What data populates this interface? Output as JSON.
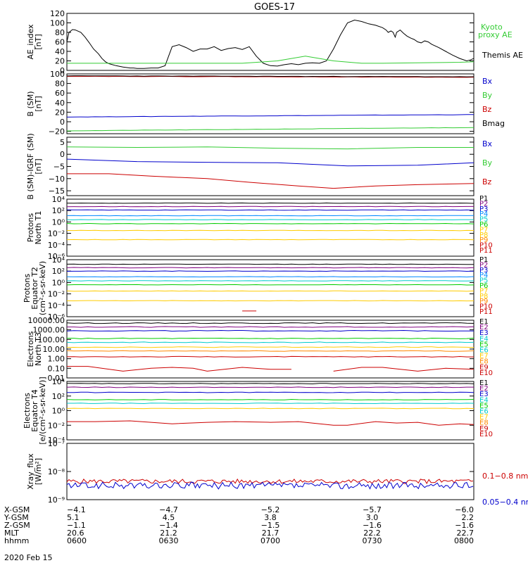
{
  "title": "GOES-17",
  "date": "2020 Feb 15",
  "chart_data": [
    {
      "type": "line",
      "ylabel": [
        "AE_index",
        "[nT]"
      ],
      "ylim": [
        0,
        120
      ],
      "yscale": "linear",
      "ticks": [
        0,
        20,
        40,
        60,
        80,
        100,
        120
      ],
      "tick_labels": [
        "0",
        "20",
        "40",
        "60",
        "80",
        "100",
        "120"
      ],
      "series": [
        {
          "name": "Themis AE",
          "color": "#000000",
          "x": [
            0,
            3,
            8,
            12,
            20,
            26,
            32,
            38,
            45,
            50,
            55,
            60,
            70,
            80,
            90,
            95,
            100,
            110,
            120,
            130,
            140,
            150,
            160,
            170,
            180,
            190,
            200,
            210,
            220,
            230,
            240,
            250,
            260,
            270,
            280,
            290,
            300,
            310,
            320,
            330,
            340,
            350,
            360,
            370,
            380,
            390,
            400,
            410,
            420,
            430,
            440,
            450,
            455,
            458,
            462,
            465,
            468,
            470,
            475,
            480,
            485,
            490,
            495,
            500,
            505,
            510,
            515,
            520,
            530,
            540,
            550,
            560,
            570,
            575,
            580
          ],
          "y": [
            60,
            80,
            86,
            85,
            80,
            70,
            58,
            45,
            35,
            25,
            18,
            14,
            10,
            7,
            5,
            5,
            4,
            4,
            5,
            5,
            10,
            50,
            54,
            48,
            40,
            45,
            45,
            50,
            42,
            46,
            48,
            44,
            50,
            30,
            15,
            10,
            9,
            12,
            14,
            12,
            15,
            16,
            15,
            20,
            45,
            75,
            100,
            106,
            103,
            98,
            95,
            90,
            85,
            80,
            83,
            80,
            70,
            80,
            85,
            78,
            72,
            68,
            65,
            60,
            58,
            62,
            60,
            55,
            48,
            40,
            32,
            25,
            20,
            22,
            25
          ]
        },
        {
          "name": "Kyoto proxy AE",
          "color": "#33cc33",
          "x": [
            0,
            100,
            200,
            250,
            300,
            340,
            360,
            380,
            420,
            450,
            500,
            560,
            580
          ],
          "y": [
            15,
            15,
            15,
            15,
            20,
            30,
            25,
            20,
            15,
            15,
            16,
            17,
            18
          ],
          "note": "approximate"
        }
      ],
      "legend": [
        "Kyoto proxy AE",
        "Themis AE"
      ]
    },
    {
      "type": "line",
      "ylabel": [
        "B (SM)",
        "[nT]"
      ],
      "ylim": [
        -25,
        100
      ],
      "yscale": "linear",
      "ticks": [
        -20,
        0,
        20,
        40,
        60,
        80,
        100
      ],
      "tick_labels": [
        "−20",
        "0",
        "20",
        "40",
        "60",
        "80",
        "100"
      ],
      "series": [
        {
          "name": "Bx",
          "color": "#0000cc",
          "y_start": 10,
          "y_end": 15
        },
        {
          "name": "By",
          "color": "#33cc33",
          "y_start": -19,
          "y_end": -12
        },
        {
          "name": "Bz",
          "color": "#cc0000",
          "y_start": 95,
          "y_end": 93
        },
        {
          "name": "Bmag",
          "color": "#000000",
          "y_start": 96,
          "y_end": 94
        }
      ],
      "legend": [
        "Bx",
        "By",
        "Bz",
        "Bmag"
      ]
    },
    {
      "type": "line",
      "ylabel": [
        "B (SM)-IGRF (SM)",
        "[nT]"
      ],
      "ylim": [
        -17,
        7
      ],
      "yscale": "linear",
      "ticks": [
        -15,
        -10,
        -5,
        0,
        5
      ],
      "tick_labels": [
        "−15",
        "−10",
        "−5",
        "0",
        "5"
      ],
      "series": [
        {
          "name": "Bx",
          "color": "#0000cc",
          "x": [
            0,
            100,
            200,
            300,
            400,
            500,
            580
          ],
          "y": [
            -2,
            -3,
            -3.3,
            -3.5,
            -4.8,
            -4.5,
            -3.5
          ]
        },
        {
          "name": "By",
          "color": "#33cc33",
          "x": [
            0,
            100,
            200,
            300,
            400,
            500,
            580
          ],
          "y": [
            3,
            2.8,
            3.0,
            2.5,
            2.2,
            2.8,
            2.8
          ]
        },
        {
          "name": "Bz",
          "color": "#cc0000",
          "x": [
            0,
            60,
            120,
            200,
            260,
            330,
            380,
            440,
            500,
            580
          ],
          "y": [
            -8,
            -8,
            -9,
            -10,
            -11.5,
            -13,
            -14,
            -13,
            -12.5,
            -12
          ]
        }
      ],
      "legend": [
        "Bx",
        "By",
        "Bz"
      ]
    },
    {
      "type": "line",
      "ylabel": [
        "Protons",
        "North T1"
      ],
      "ylim": [
        -6,
        4
      ],
      "yscale": "log",
      "ticks": [
        -6,
        -4,
        -2,
        0,
        2,
        4
      ],
      "tick_labels": [
        "10⁻⁶",
        "10⁻⁴",
        "10⁻²",
        "10⁰",
        "10²",
        "10⁴"
      ],
      "series": [
        {
          "name": "P1",
          "color": "#000000",
          "y": 3.3
        },
        {
          "name": "P2",
          "color": "#800080",
          "y": 2.7
        },
        {
          "name": "P3",
          "color": "#0000cc",
          "y": 2.1
        },
        {
          "name": "P4",
          "color": "#0088ff",
          "y": 1.1
        },
        {
          "name": "P5",
          "color": "#00cccc",
          "y": 0.4
        },
        {
          "name": "P6",
          "color": "#00cc00",
          "y": -0.3
        },
        {
          "name": "P7",
          "color": "#ffcc00",
          "y": -1.5
        },
        {
          "name": "P8",
          "color": "#ffcc00",
          "y": -3.1
        }
      ],
      "legend": [
        "P1",
        "P2",
        "P3",
        "P4",
        "P5",
        "P6",
        "P7",
        "P8",
        "P9",
        "P10",
        "P11"
      ]
    },
    {
      "type": "line",
      "ylabel": [
        "Protons",
        "Equator T2",
        "(cm²-s-sr-keV)"
      ],
      "ylim": [
        -6,
        4
      ],
      "yscale": "log",
      "ticks": [
        -6,
        -4,
        -2,
        0,
        2,
        4
      ],
      "tick_labels": [
        "10⁻⁶",
        "10⁻⁴",
        "10⁻²",
        "10⁰",
        "10²",
        "10⁴"
      ],
      "series": [
        {
          "name": "P1",
          "color": "#000000",
          "y": 3.2
        },
        {
          "name": "P2",
          "color": "#800080",
          "y": 2.6
        },
        {
          "name": "P3",
          "color": "#0000cc",
          "y": 2.0
        },
        {
          "name": "P4",
          "color": "#0088ff",
          "y": 1.0
        },
        {
          "name": "P5",
          "color": "#00cccc",
          "y": 0.3
        },
        {
          "name": "P6",
          "color": "#00cc00",
          "y": -0.4
        },
        {
          "name": "P7",
          "color": "#ffcc00",
          "y": -1.5
        },
        {
          "name": "P8",
          "color": "#ffcc00",
          "y": -3.2
        },
        {
          "name": "P10",
          "color": "#cc0000",
          "y": -5.0,
          "x_range": [
            250,
            275
          ]
        }
      ],
      "legend": [
        "P1",
        "P2",
        "P3",
        "P4",
        "P5",
        "P6",
        "P7",
        "P8",
        "P9",
        "P10",
        "P11"
      ]
    },
    {
      "type": "line",
      "ylabel": [
        "Electrons",
        "North T3"
      ],
      "ylim": [
        -2,
        4
      ],
      "yscale": "log",
      "ticks": [
        -2,
        -1,
        0,
        1,
        2,
        3,
        4
      ],
      "tick_labels": [
        "0.01",
        "0.10",
        "1.00",
        "10.00",
        "100.00",
        "1000.00",
        "10000.00"
      ],
      "series": [
        {
          "name": "E1",
          "color": "#000000",
          "y": 3.7
        },
        {
          "name": "E2",
          "color": "#800080",
          "y": 3.3
        },
        {
          "name": "E3",
          "color": "#0000cc",
          "y": 2.9
        },
        {
          "name": "E4",
          "color": "#00cc00",
          "y": 2.1
        },
        {
          "name": "E5",
          "color": "#00cccc",
          "y": 1.7
        },
        {
          "name": "E6",
          "color": "#ffcc00",
          "y": 1.2
        },
        {
          "name": "E7",
          "color": "#ff8800",
          "y": 0.8
        },
        {
          "name": "E8",
          "color": "#cc0000",
          "y": 0.2
        },
        {
          "name": "E9",
          "color": "#cc0000",
          "x": [
            0,
            30,
            80,
            120,
            150,
            180,
            200,
            250,
            290,
            320,
            370,
            380,
            420,
            450,
            500,
            540,
            580
          ],
          "y": [
            -0.8,
            -0.8,
            -1.3,
            -1.0,
            -0.9,
            -1.0,
            -1.3,
            -0.9,
            -1.1,
            -1.1,
            "gap",
            -1.3,
            -0.9,
            -0.9,
            -1.3,
            -1.0,
            -1.1
          ]
        }
      ],
      "legend": [
        "E1",
        "E2",
        "E3",
        "E4",
        "E5",
        "E6",
        "E7",
        "E8",
        "E9",
        "E10"
      ]
    },
    {
      "type": "line",
      "ylabel": [
        "Electrons",
        "Equator T4",
        "[e/(cm²-s-sr-keV)]"
      ],
      "ylim": [
        -4,
        4
      ],
      "yscale": "log",
      "ticks": [
        -4,
        -2,
        0,
        2,
        4
      ],
      "tick_labels": [
        "10⁻⁴",
        "10⁻²",
        "10⁰",
        "10²",
        "10⁴"
      ],
      "series": [
        {
          "name": "E1",
          "color": "#000000",
          "y": 3.7
        },
        {
          "name": "E2",
          "color": "#800080",
          "y": 3.2
        },
        {
          "name": "E3",
          "color": "#0000cc",
          "y": 2.5
        },
        {
          "name": "E4",
          "color": "#00cc00",
          "y": 1.5
        },
        {
          "name": "E5",
          "color": "#00cccc",
          "y": 1.0
        },
        {
          "name": "E6",
          "color": "#ffcc00",
          "y": 0.3
        },
        {
          "name": "E7",
          "color": "#cc0000",
          "x": [
            0,
            40,
            90,
            150,
            200,
            240,
            290,
            330,
            380,
            400,
            440,
            470,
            500,
            530,
            560,
            580
          ],
          "y": [
            -1.5,
            -1.5,
            -1.4,
            -1.8,
            -1.6,
            -1.5,
            -1.6,
            -1.5,
            -2.0,
            -2.0,
            -1.5,
            -1.7,
            -1.6,
            -2.0,
            -1.8,
            -1.9
          ]
        }
      ],
      "legend": [
        "E1",
        "E2",
        "E3",
        "E4",
        "E5",
        "E6",
        "E7",
        "E8",
        "E9",
        "E10"
      ]
    },
    {
      "type": "line",
      "ylabel": [
        "Xray_flux",
        "[W/m²]"
      ],
      "ylim": [
        -9,
        -7
      ],
      "yscale": "log",
      "ticks": [
        -9,
        -8,
        -7
      ],
      "tick_labels": [
        "10⁻⁹",
        "10⁻⁸",
        "10⁻⁷"
      ],
      "series": [
        {
          "name": "0.1-0.8 nm",
          "color": "#cc0000",
          "base": -8.35,
          "noise": 0.08
        },
        {
          "name": "0.05-0.4 nm",
          "color": "#0000cc",
          "base": -8.5,
          "noise": 0.12
        }
      ],
      "legend": [
        "0.1−0.8 nm",
        "0.05−0.4 nm"
      ]
    }
  ],
  "x_axis": {
    "rows": [
      {
        "label": "X-GSM",
        "values": [
          "−4.1",
          "−4.7",
          "−5.2",
          "−5.7",
          "−6.0"
        ]
      },
      {
        "label": "Y-GSM",
        "values": [
          "5.1",
          "4.5",
          "3.8",
          "3.0",
          "2.2"
        ]
      },
      {
        "label": "Z-GSM",
        "values": [
          "−1.1",
          "−1.4",
          "−1.5",
          "−1.6",
          "−1.6"
        ]
      },
      {
        "label": "MLT",
        "values": [
          "20.6",
          "21.2",
          "21.7",
          "22.2",
          "22.7"
        ]
      },
      {
        "label": "hhmm",
        "values": [
          "0600",
          "0630",
          "0700",
          "0730",
          "0800"
        ]
      }
    ]
  },
  "legend_labels": {
    "p0": [
      "Kyoto",
      "proxy AE",
      "Themis AE"
    ],
    "p1": [
      "Bx",
      "By",
      "Bz",
      "Bmag"
    ],
    "p2": [
      "Bx",
      "By",
      "Bz"
    ],
    "p3": [
      "P1",
      "P2",
      "P3",
      "P4",
      "P5",
      "P6",
      "P7",
      "P8",
      "P9",
      "P10",
      "P11"
    ],
    "p4": [
      "P1",
      "P2",
      "P3",
      "P4",
      "P5",
      "P6",
      "P7",
      "P8",
      "P9",
      "P10",
      "P11"
    ],
    "p5": [
      "E1",
      "E2",
      "E3",
      "E4",
      "E5",
      "E6",
      "E7",
      "E8",
      "E9",
      "E10"
    ],
    "p6": [
      "E1",
      "E2",
      "E3",
      "E4",
      "E5",
      "E6",
      "E7",
      "E8",
      "E9",
      "E10"
    ],
    "p7": [
      "0.1−0.8 nm",
      "0.05−0.4 nm"
    ]
  },
  "colors": {
    "P": [
      "#000000",
      "#800080",
      "#0000cc",
      "#0088ff",
      "#00cccc",
      "#00cc00",
      "#ffcc00",
      "#ffcc00",
      "#ff8800",
      "#cc0000",
      "#cc0000"
    ],
    "E": [
      "#000000",
      "#800080",
      "#0000cc",
      "#00cccc",
      "#00cc00",
      "#00cccc",
      "#ffcc00",
      "#ff8800",
      "#cc0000",
      "#cc0000"
    ]
  }
}
